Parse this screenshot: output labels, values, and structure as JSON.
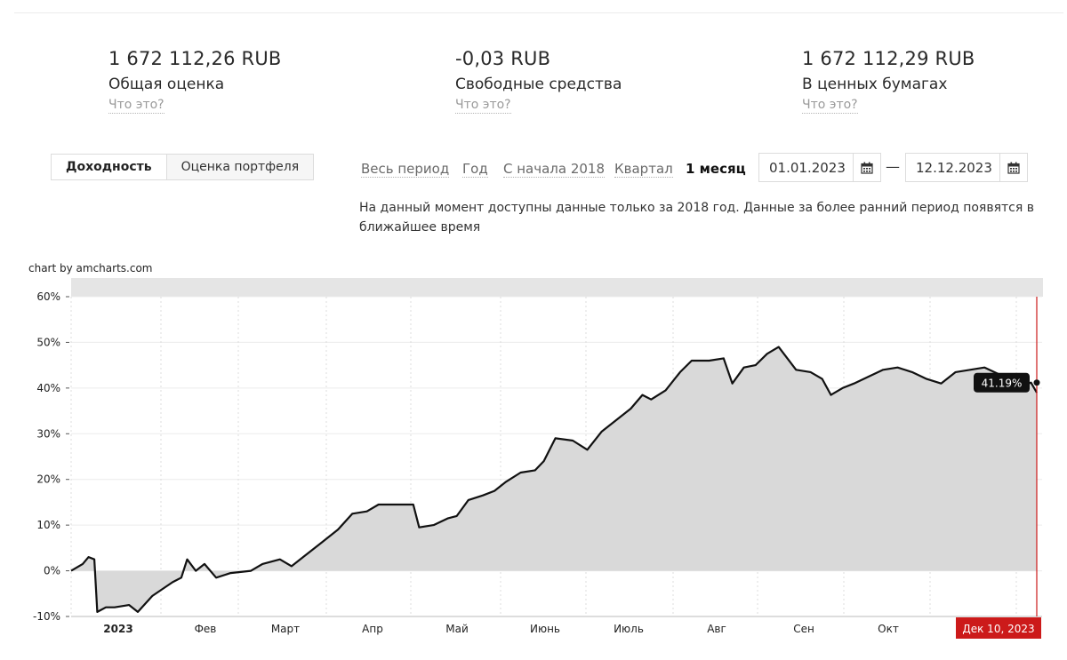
{
  "summary": [
    {
      "value": "1 672 112,26 RUB",
      "label": "Общая оценка",
      "help": "Что это?"
    },
    {
      "value": "-0,03 RUB",
      "label": "Свободные средства",
      "help": "Что это?"
    },
    {
      "value": "1 672 112,29 RUB",
      "label": "В ценных бумагах",
      "help": "Что это?"
    }
  ],
  "tabs": {
    "yield": "Доходность",
    "valuation": "Оценка портфеля"
  },
  "periods": [
    {
      "label": "Весь период",
      "active": false
    },
    {
      "label": "Год",
      "active": false
    },
    {
      "label": "С начала 2018",
      "active": false
    },
    {
      "label": "Квартал",
      "active": false
    },
    {
      "label": "1 месяц",
      "active": true
    }
  ],
  "date_from": "01.01.2023",
  "date_separator": "—",
  "date_to": "12.12.2023",
  "notice": "На данный момент доступны данные только за 2018 год. Данные за более ранний период появятся в ближайшее время",
  "chart_credit": "chart by amcharts.com",
  "colors": {
    "line": "#111111",
    "fill": "#d9d9d9",
    "cursor": "#cc1a1a",
    "tooltip": "#111111"
  },
  "chart_data": {
    "type": "area",
    "title": "",
    "xlabel": "",
    "ylabel": "",
    "ylim": [
      -10,
      60
    ],
    "y_ticks": [
      "-10%",
      "0%",
      "10%",
      "20%",
      "30%",
      "40%",
      "50%",
      "60%"
    ],
    "x_ticks": [
      "2023",
      "Фев",
      "Март",
      "Апр",
      "Май",
      "Июнь",
      "Июль",
      "Авг",
      "Сен",
      "Окт"
    ],
    "grid": true,
    "series": [
      {
        "values_by_day": [
          {
            "day": 0,
            "y": 0
          },
          {
            "day": 4,
            "y": 1.5
          },
          {
            "day": 6,
            "y": 3
          },
          {
            "day": 8,
            "y": 2.5
          },
          {
            "day": 9,
            "y": -9
          },
          {
            "day": 12,
            "y": -8
          },
          {
            "day": 15,
            "y": -8
          },
          {
            "day": 20,
            "y": -7.5
          },
          {
            "day": 23,
            "y": -9
          },
          {
            "day": 28,
            "y": -5.5
          },
          {
            "day": 35,
            "y": -2.5
          },
          {
            "day": 38,
            "y": -1.5
          },
          {
            "day": 40,
            "y": 2.5
          },
          {
            "day": 43,
            "y": 0
          },
          {
            "day": 46,
            "y": 1.5
          },
          {
            "day": 50,
            "y": -1.5
          },
          {
            "day": 55,
            "y": -0.5
          },
          {
            "day": 62,
            "y": 0
          },
          {
            "day": 66,
            "y": 1.5
          },
          {
            "day": 72,
            "y": 2.5
          },
          {
            "day": 76,
            "y": 1
          },
          {
            "day": 80,
            "y": 3
          },
          {
            "day": 86,
            "y": 6
          },
          {
            "day": 92,
            "y": 9
          },
          {
            "day": 97,
            "y": 12.5
          },
          {
            "day": 102,
            "y": 13
          },
          {
            "day": 106,
            "y": 14.5
          },
          {
            "day": 114,
            "y": 14.5
          },
          {
            "day": 118,
            "y": 14.5
          },
          {
            "day": 120,
            "y": 9.5
          },
          {
            "day": 125,
            "y": 10
          },
          {
            "day": 130,
            "y": 11.5
          },
          {
            "day": 133,
            "y": 12
          },
          {
            "day": 137,
            "y": 15.5
          },
          {
            "day": 142,
            "y": 16.5
          },
          {
            "day": 146,
            "y": 17.5
          },
          {
            "day": 150,
            "y": 19.5
          },
          {
            "day": 155,
            "y": 21.5
          },
          {
            "day": 160,
            "y": 22
          },
          {
            "day": 163,
            "y": 24
          },
          {
            "day": 167,
            "y": 29
          },
          {
            "day": 173,
            "y": 28.5
          },
          {
            "day": 178,
            "y": 26.5
          },
          {
            "day": 183,
            "y": 30.5
          },
          {
            "day": 188,
            "y": 33
          },
          {
            "day": 193,
            "y": 35.5
          },
          {
            "day": 197,
            "y": 38.5
          },
          {
            "day": 200,
            "y": 37.5
          },
          {
            "day": 205,
            "y": 39.5
          },
          {
            "day": 210,
            "y": 43.5
          },
          {
            "day": 214,
            "y": 46
          },
          {
            "day": 220,
            "y": 46
          },
          {
            "day": 225,
            "y": 46.5
          },
          {
            "day": 228,
            "y": 41
          },
          {
            "day": 232,
            "y": 44.5
          },
          {
            "day": 236,
            "y": 45
          },
          {
            "day": 240,
            "y": 47.5
          },
          {
            "day": 244,
            "y": 49
          },
          {
            "day": 247,
            "y": 46.5
          },
          {
            "day": 250,
            "y": 44
          },
          {
            "day": 255,
            "y": 43.5
          },
          {
            "day": 259,
            "y": 42
          },
          {
            "day": 262,
            "y": 38.5
          },
          {
            "day": 266,
            "y": 40
          },
          {
            "day": 270,
            "y": 41
          },
          {
            "day": 275,
            "y": 42.5
          },
          {
            "day": 280,
            "y": 44
          },
          {
            "day": 285,
            "y": 44.5
          },
          {
            "day": 290,
            "y": 43.5
          },
          {
            "day": 295,
            "y": 42
          },
          {
            "day": 300,
            "y": 41
          },
          {
            "day": 305,
            "y": 43.5
          },
          {
            "day": 310,
            "y": 44
          },
          {
            "day": 315,
            "y": 44.5
          },
          {
            "day": 320,
            "y": 43
          },
          {
            "day": 323,
            "y": 42
          },
          {
            "day": 325,
            "y": 41.5
          },
          {
            "day": 328,
            "y": 40.5
          },
          {
            "day": 331,
            "y": 41.19
          },
          {
            "day": 333,
            "y": 39
          }
        ]
      }
    ],
    "cursor": {
      "label": "Дек 10, 2023",
      "value_label": "41.19%"
    }
  }
}
